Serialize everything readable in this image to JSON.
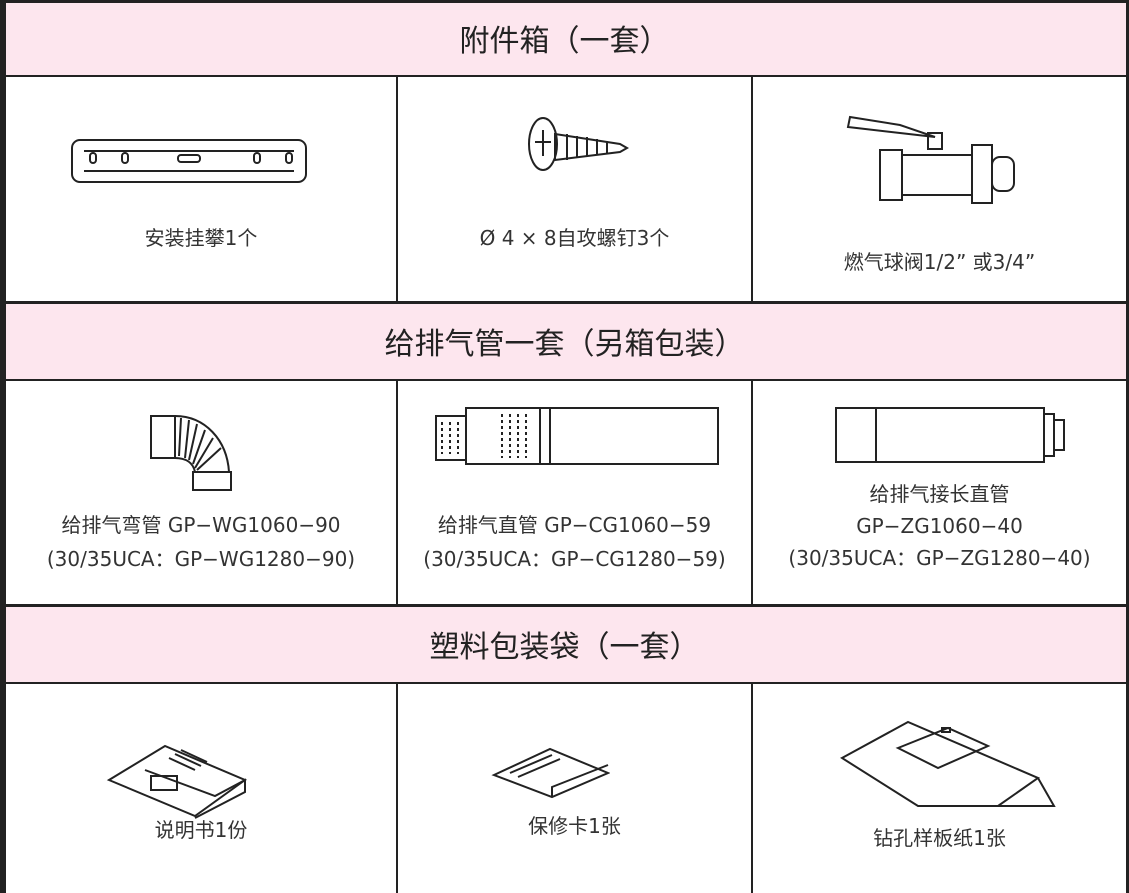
{
  "sections": [
    {
      "title": "附件箱（一套）",
      "items": [
        {
          "lines": [
            "安装挂攀1个"
          ]
        },
        {
          "lines": [
            "Ø 4 × 8自攻螺钉3个"
          ]
        },
        {
          "lines": [
            "燃气球阀1/2” 或3/4”"
          ]
        }
      ]
    },
    {
      "title": "给排气管一套（另箱包装）",
      "items": [
        {
          "lines": [
            "给排气弯管 GP−WG1060−90",
            "(30/35UCA：GP−WG1280−90)"
          ]
        },
        {
          "lines": [
            "给排气直管 GP−CG1060−59",
            "(30/35UCA：GP−CG1280−59)"
          ]
        },
        {
          "lines": [
            "给排气接长直管",
            "GP−ZG1060−40",
            "(30/35UCA：GP−ZG1280−40)"
          ]
        }
      ]
    },
    {
      "title": "塑料包装袋（一套）",
      "items": [
        {
          "lines": [
            "说明书1份"
          ]
        },
        {
          "lines": [
            "保修卡1张"
          ]
        },
        {
          "lines": [
            "钻孔样板纸1张"
          ]
        }
      ]
    }
  ]
}
